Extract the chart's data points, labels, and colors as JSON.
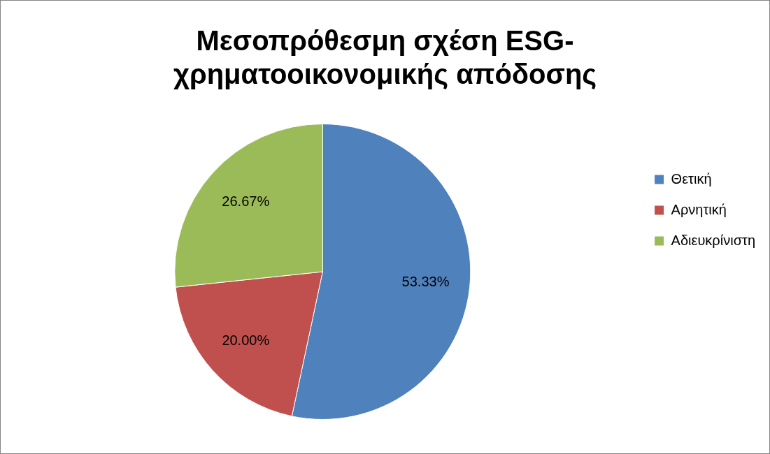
{
  "chart_data": {
    "type": "pie",
    "title": "Μεσοπρόθεσμη σχέση ESG-χρηματοοικονομικής απόδοσης",
    "categories": [
      "Θετική",
      "Αρνητική",
      "Αδιευκρίνιστη"
    ],
    "values": [
      53.33,
      20.0,
      26.67
    ],
    "colors": [
      "#4f81bd",
      "#c0504d",
      "#9bbb59"
    ],
    "value_labels": [
      "53.33%",
      "20.00%",
      "26.67%"
    ],
    "legend": "right"
  }
}
